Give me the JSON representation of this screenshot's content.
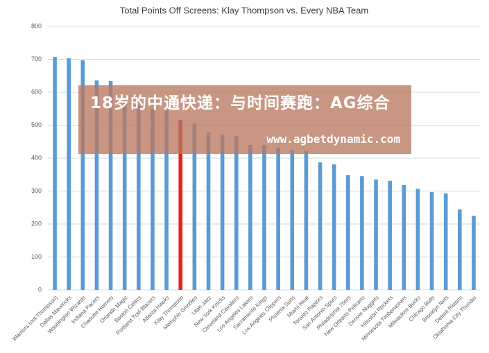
{
  "chart_data": {
    "type": "bar",
    "title": "Total Points Off Screens: Klay Thompson vs. Every NBA Team",
    "categories": [
      "Warriors (not Thompson)",
      "Dallas Mavericks",
      "Washington Wizards",
      "Indiana Pacers",
      "Charlotte Hornets",
      "Orlando Magic",
      "Boston Celtics",
      "Portland Trail Blazers",
      "Atlanta Hawks",
      "Klay Thompson",
      "Memphis Grizzlies",
      "Utah Jazz",
      "New York Knicks",
      "Cleveland Cavaliers",
      "Los Angeles Lakers",
      "Sacramento Kings",
      "Los Angeles Clippers",
      "Phoenix Suns",
      "Miami Heat",
      "Toronto Raptors",
      "San Antonio Spurs",
      "Philadelphia 76ers",
      "New Orleans Pelicans",
      "Denver Nuggets",
      "Houston Rockets",
      "Minnesota Timberwolves",
      "Milwaukee Bucks",
      "Chicago Bulls",
      "Brooklyn Nets",
      "Detroit Pistons",
      "Oklahoma City Thunder"
    ],
    "values": [
      707,
      703,
      697,
      636,
      634,
      580,
      560,
      550,
      545,
      516,
      505,
      478,
      472,
      467,
      440,
      440,
      432,
      425,
      423,
      387,
      381,
      349,
      345,
      335,
      331,
      318,
      307,
      297,
      293,
      244,
      225
    ],
    "colors": [
      "#5b9bd5",
      "#5b9bd5",
      "#5b9bd5",
      "#5b9bd5",
      "#5b9bd5",
      "#5b9bd5",
      "#5b9bd5",
      "#5b9bd5",
      "#5b9bd5",
      "#e8231c",
      "#5b9bd5",
      "#5b9bd5",
      "#5b9bd5",
      "#5b9bd5",
      "#5b9bd5",
      "#5b9bd5",
      "#5b9bd5",
      "#5b9bd5",
      "#5b9bd5",
      "#5b9bd5",
      "#5b9bd5",
      "#5b9bd5",
      "#5b9bd5",
      "#5b9bd5",
      "#5b9bd5",
      "#5b9bd5",
      "#5b9bd5",
      "#5b9bd5",
      "#5b9bd5",
      "#5b9bd5",
      "#5b9bd5"
    ],
    "ylim": [
      0,
      800
    ],
    "yticks": [
      0,
      100,
      200,
      300,
      400,
      500,
      600,
      700,
      800
    ],
    "grid": true
  },
  "overlay": {
    "title": "18岁的中通快递：与时间赛跑：AG综合",
    "url": "www.agbetdynamic.com"
  }
}
